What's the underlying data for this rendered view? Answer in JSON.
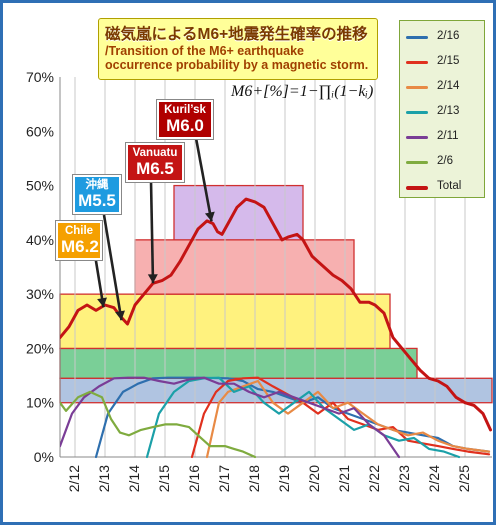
{
  "title": {
    "ja": "磁気嵐によるM6+地震発生確率の推移",
    "en_line1": "/Transition of the M6+ earthquake",
    "en_line2": "occurrence probability by a magnetic storm."
  },
  "formula": "M6+[%]=1−∏ᵢ(1−kᵢ)",
  "earthquakes": [
    {
      "id": "chile",
      "name": "Chile",
      "magnitude": "M6.2",
      "color": "#f5a000"
    },
    {
      "id": "okinawa",
      "name": "沖縄",
      "magnitude": "M5.5",
      "color": "#1e9be0"
    },
    {
      "id": "vanuatu",
      "name": "Vanuatu",
      "magnitude": "M6.5",
      "color": "#c41414"
    },
    {
      "id": "kurils",
      "name": "Kuril’sk",
      "magnitude": "M6.0",
      "color": "#b00000"
    }
  ],
  "chart_data": {
    "type": "line",
    "title": "磁気嵐によるM6+地震発生確率の推移",
    "xlabel": "",
    "ylabel": "",
    "xlim": [
      11.5,
      25.9
    ],
    "ylim": [
      0,
      70
    ],
    "x_ticks": [
      12,
      13,
      14,
      15,
      16,
      17,
      18,
      19,
      20,
      21,
      22,
      23,
      24,
      25
    ],
    "x_tick_labels": [
      "2/12",
      "2/13",
      "2/14",
      "2/15",
      "2/16",
      "2/17",
      "2/18",
      "2/19",
      "2/20",
      "2/21",
      "2/22",
      "2/23",
      "2/24",
      "2/25"
    ],
    "y_ticks": [
      0,
      10,
      20,
      30,
      40,
      50,
      60,
      70
    ],
    "y_tick_labels": [
      "0%",
      "10%",
      "20%",
      "30%",
      "40%",
      "50%",
      "60%",
      "70%"
    ],
    "grid": "vertical-only",
    "legend_position": "top-right",
    "series": [
      {
        "name": "2/16",
        "color": "#2e6fae",
        "points": [
          [
            12.7,
            0
          ],
          [
            13.1,
            8
          ],
          [
            13.6,
            12
          ],
          [
            14.1,
            13.5
          ],
          [
            14.6,
            14.5
          ],
          [
            15.1,
            14.6
          ],
          [
            16.1,
            14.6
          ],
          [
            17.1,
            14.5
          ],
          [
            17.6,
            14
          ],
          [
            18.1,
            12.5
          ],
          [
            18.6,
            12
          ],
          [
            19.1,
            11
          ],
          [
            19.6,
            10
          ],
          [
            20.1,
            11
          ],
          [
            20.6,
            9
          ],
          [
            21.1,
            8
          ],
          [
            21.6,
            7
          ],
          [
            22.1,
            6
          ],
          [
            22.6,
            5
          ],
          [
            23.1,
            4.5
          ],
          [
            23.6,
            4
          ],
          [
            24.1,
            3.5
          ],
          [
            24.6,
            2
          ],
          [
            25.1,
            1.5
          ],
          [
            25.8,
            1
          ]
        ]
      },
      {
        "name": "2/15",
        "color": "#e0301e",
        "points": [
          [
            15.9,
            0
          ],
          [
            16.3,
            8
          ],
          [
            16.7,
            12
          ],
          [
            17.1,
            14
          ],
          [
            17.6,
            14.5
          ],
          [
            18.1,
            14.6
          ],
          [
            18.6,
            13
          ],
          [
            19.1,
            11.5
          ],
          [
            19.6,
            10
          ],
          [
            20.1,
            8
          ],
          [
            20.6,
            10
          ],
          [
            21.1,
            7
          ],
          [
            21.6,
            6
          ],
          [
            22.1,
            5
          ],
          [
            22.6,
            5.5
          ],
          [
            23.1,
            3
          ],
          [
            23.6,
            2.5
          ],
          [
            24.1,
            2
          ],
          [
            24.6,
            1.5
          ],
          [
            25.1,
            1
          ],
          [
            25.8,
            0.5
          ]
        ]
      },
      {
        "name": "2/14",
        "color": "#e88a45",
        "points": [
          [
            16.4,
            0
          ],
          [
            16.8,
            10
          ],
          [
            17.1,
            12
          ],
          [
            17.6,
            13
          ],
          [
            18.1,
            14
          ],
          [
            18.6,
            10
          ],
          [
            19.1,
            8
          ],
          [
            19.6,
            10
          ],
          [
            20.1,
            12
          ],
          [
            20.6,
            9
          ],
          [
            21.1,
            10
          ],
          [
            21.6,
            8
          ],
          [
            22.1,
            6
          ],
          [
            22.6,
            5
          ],
          [
            23.1,
            4
          ],
          [
            23.6,
            4.5
          ],
          [
            24.1,
            3
          ],
          [
            24.6,
            2
          ],
          [
            25.1,
            1.5
          ],
          [
            25.8,
            1
          ]
        ]
      },
      {
        "name": "2/13",
        "color": "#1ba0a8",
        "points": [
          [
            14.4,
            0
          ],
          [
            14.8,
            8
          ],
          [
            15.3,
            12
          ],
          [
            15.8,
            14
          ],
          [
            16.3,
            14.5
          ],
          [
            16.8,
            14.6
          ],
          [
            17.3,
            12
          ],
          [
            17.8,
            13
          ],
          [
            18.3,
            10
          ],
          [
            18.8,
            8
          ],
          [
            19.3,
            10
          ],
          [
            19.8,
            12
          ],
          [
            20.3,
            9
          ],
          [
            20.8,
            7
          ],
          [
            21.3,
            5
          ],
          [
            21.8,
            6
          ],
          [
            22.3,
            4
          ],
          [
            22.8,
            3
          ],
          [
            23.3,
            3.5
          ],
          [
            23.8,
            1.5
          ],
          [
            24.3,
            1
          ],
          [
            24.8,
            0
          ]
        ]
      },
      {
        "name": "2/11",
        "color": "#7a3d96",
        "points": [
          [
            11.5,
            2
          ],
          [
            11.9,
            8
          ],
          [
            12.3,
            11
          ],
          [
            12.8,
            13
          ],
          [
            13.3,
            14.5
          ],
          [
            13.8,
            14.6
          ],
          [
            14.3,
            14.6
          ],
          [
            14.8,
            14
          ],
          [
            15.3,
            13.5
          ],
          [
            15.8,
            14.3
          ],
          [
            16.3,
            14.6
          ],
          [
            16.8,
            13.5
          ],
          [
            17.3,
            13.5
          ],
          [
            17.8,
            12
          ],
          [
            18.3,
            11
          ],
          [
            18.8,
            12
          ],
          [
            19.3,
            11
          ],
          [
            19.8,
            10
          ],
          [
            20.3,
            9
          ],
          [
            20.8,
            8
          ],
          [
            21.3,
            9
          ],
          [
            21.8,
            6
          ],
          [
            22.3,
            4
          ],
          [
            22.8,
            0
          ]
        ]
      },
      {
        "name": "2/6",
        "color": "#7fab3f",
        "points": [
          [
            11.5,
            10
          ],
          [
            11.7,
            8.5
          ],
          [
            12.1,
            11
          ],
          [
            12.5,
            12
          ],
          [
            12.9,
            11
          ],
          [
            13.2,
            7
          ],
          [
            13.5,
            4.5
          ],
          [
            13.8,
            4
          ],
          [
            14.2,
            5
          ],
          [
            14.6,
            5.5
          ],
          [
            15.0,
            6
          ],
          [
            15.4,
            6
          ],
          [
            15.8,
            5.5
          ],
          [
            16.1,
            4
          ],
          [
            16.5,
            2
          ],
          [
            17.0,
            2
          ],
          [
            17.3,
            1.5
          ],
          [
            17.6,
            1
          ],
          [
            18.0,
            0
          ]
        ]
      },
      {
        "name": "Total",
        "color": "#c41414",
        "points": [
          [
            11.5,
            22
          ],
          [
            11.8,
            24
          ],
          [
            12.1,
            27
          ],
          [
            12.4,
            28
          ],
          [
            12.7,
            27
          ],
          [
            13.0,
            28
          ],
          [
            13.3,
            27.5
          ],
          [
            13.5,
            26
          ],
          [
            13.75,
            24.5
          ],
          [
            14.0,
            28
          ],
          [
            14.3,
            30
          ],
          [
            14.6,
            32
          ],
          [
            14.9,
            32.5
          ],
          [
            15.2,
            33.5
          ],
          [
            15.5,
            36
          ],
          [
            15.8,
            39
          ],
          [
            16.1,
            42
          ],
          [
            16.4,
            43.5
          ],
          [
            16.6,
            43
          ],
          [
            16.75,
            41.5
          ],
          [
            16.9,
            41
          ],
          [
            17.1,
            43
          ],
          [
            17.4,
            46
          ],
          [
            17.7,
            47.5
          ],
          [
            18.0,
            47
          ],
          [
            18.3,
            46
          ],
          [
            18.6,
            43
          ],
          [
            18.9,
            40
          ],
          [
            19.1,
            40.5
          ],
          [
            19.4,
            41
          ],
          [
            19.6,
            40
          ],
          [
            19.9,
            37
          ],
          [
            20.1,
            36
          ],
          [
            20.3,
            35
          ],
          [
            20.6,
            33.5
          ],
          [
            20.9,
            32.5
          ],
          [
            21.2,
            31
          ],
          [
            21.5,
            28.5
          ],
          [
            21.8,
            28.5
          ],
          [
            22.0,
            28
          ],
          [
            22.3,
            26.5
          ],
          [
            22.6,
            22
          ],
          [
            22.9,
            20
          ],
          [
            23.2,
            18
          ],
          [
            23.5,
            16
          ],
          [
            23.8,
            14.5
          ],
          [
            24.1,
            14
          ],
          [
            24.4,
            13
          ],
          [
            24.7,
            11
          ],
          [
            25.0,
            10
          ],
          [
            25.3,
            9.5
          ],
          [
            25.6,
            8
          ],
          [
            25.85,
            5
          ]
        ]
      }
    ],
    "bands": [
      {
        "from_x": 11.5,
        "to_x": 25.9,
        "y0": 10,
        "y1": 14.5,
        "fill": "#9ab4d8"
      },
      {
        "from_x": 11.5,
        "to_x": 23.4,
        "y0": 14.5,
        "y1": 20,
        "fill": "#55c27a"
      },
      {
        "from_x": 11.5,
        "to_x": 22.5,
        "y0": 20,
        "y1": 30,
        "fill": "#ffee5a"
      },
      {
        "from_x": 14.0,
        "to_x": 21.3,
        "y0": 30,
        "y1": 40,
        "fill": "#f59a9a"
      },
      {
        "from_x": 15.3,
        "to_x": 19.6,
        "y0": 40,
        "y1": 50,
        "fill": "#c9a6e6"
      }
    ]
  }
}
